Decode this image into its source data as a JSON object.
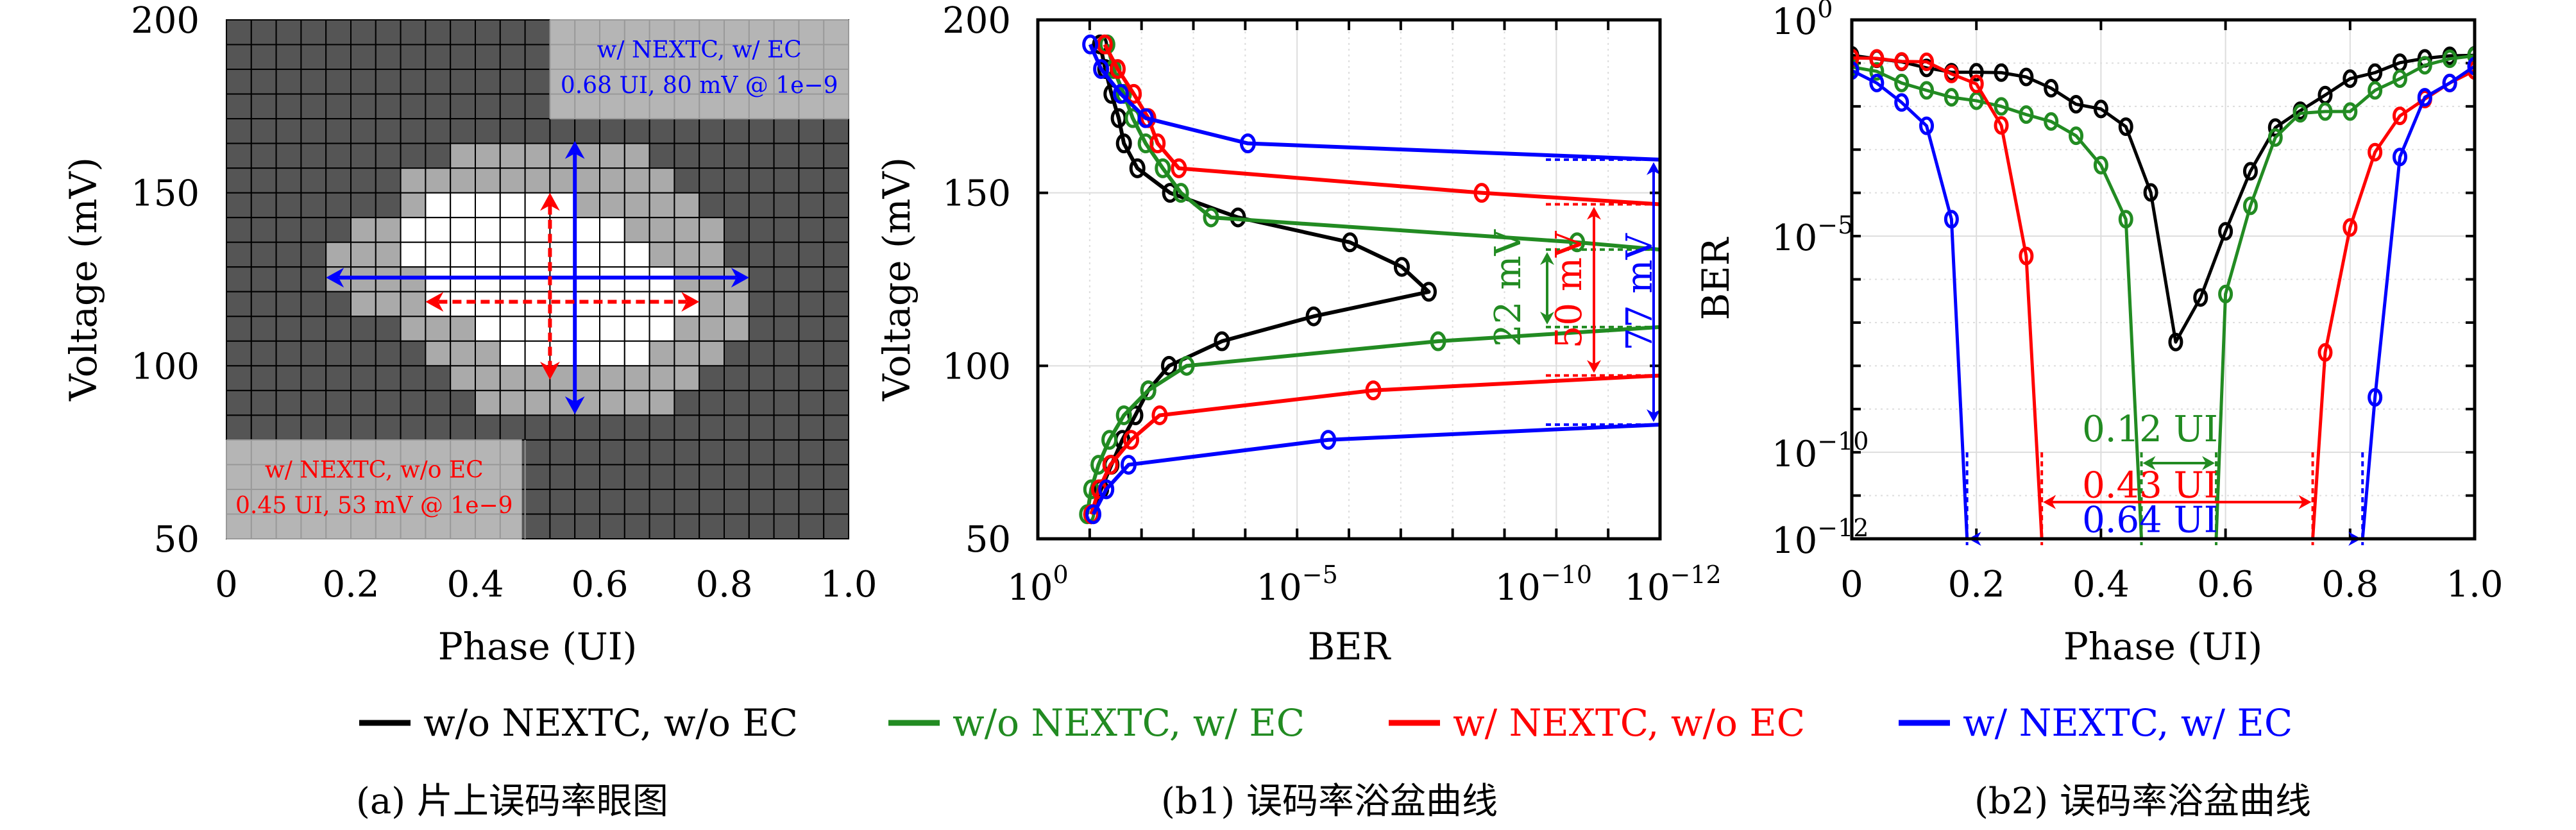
{
  "colors": {
    "black": "#000000",
    "green": "#228B22",
    "red": "#FF0000",
    "blue": "#0000FF",
    "eye_dark": "#555555",
    "eye_mid": "#AAAAAA",
    "eye_open": "#FFFFFF",
    "label_box": "#BBBBBB"
  },
  "legend": [
    {
      "key": "k",
      "label": "w/o NEXTC, w/o EC",
      "color": "#000000"
    },
    {
      "key": "g",
      "label": "w/o NEXTC, w/ EC",
      "color": "#228B22"
    },
    {
      "key": "r",
      "label": "w/ NEXTC, w/o EC",
      "color": "#FF0000"
    },
    {
      "key": "b",
      "label": "w/ NEXTC, w/ EC",
      "color": "#0000FF"
    }
  ],
  "captions": {
    "a": "(a) 片上误码率眼图",
    "b1": "(b1) 误码率浴盆曲线",
    "b2": "(b2) 误码率浴盆曲线"
  },
  "chart_data": [
    {
      "id": "a",
      "type": "heatmap",
      "title": "片上误码率眼图",
      "xlabel": "Phase (UI)",
      "ylabel": "Voltage (mV)",
      "xlim": [
        0,
        1.0
      ],
      "ylim": [
        50,
        200
      ],
      "xticks": [
        "0",
        "0.2",
        "0.4",
        "0.6",
        "0.8",
        "1.0"
      ],
      "xtick_values": [
        0,
        0.2,
        0.4,
        0.6,
        0.8,
        1.0
      ],
      "yticks": [
        "50",
        "100",
        "150",
        "200"
      ],
      "ytick_values": [
        50,
        100,
        150,
        200
      ],
      "grid_cols": 25,
      "grid_rows": 21,
      "cell_legend": {
        "0": "BER above 1e-9 for both (dark)",
        "1": "open only with NEXTC + EC (mid grey)",
        "2": "open for both (white)"
      },
      "rows_top_to_bottom": [
        "0000000000000000000000000",
        "0000000000000000000000000",
        "0000000000000000000000000",
        "0000000000000000000000000",
        "0000000000000000000000000",
        "0000000001111111100000000",
        "0000000111111111110000000",
        "0000000122222211111000000",
        "0000011222222222111100000",
        "0000111222222222211100000",
        "0000111122222222221110000",
        "0000011122222222222110000",
        "0000000111222222221110000",
        "0000000011122222211100000",
        "0000000001111111111000000",
        "0000000000111111110000000",
        "0000000000000000000000000",
        "0000000000000000000000000",
        "0000000000000000000000000",
        "0000000000000000000000000",
        "0000000000000000000000000"
      ],
      "label_boxes": [
        {
          "position": "top-right",
          "color": "#0000FF",
          "lines": [
            "w/ NEXTC, w/ EC",
            "0.68 UI, 80 mV @ 1e−9"
          ]
        },
        {
          "position": "bottom-left",
          "color": "#FF0000",
          "lines": [
            "w/ NEXTC, w/o EC",
            "0.45 UI, 53 mV @ 1e−9"
          ]
        }
      ],
      "arrows": [
        {
          "series": "b",
          "style": "solid",
          "horizontal": {
            "y": 125.5,
            "x0": 0.16,
            "x1": 0.84
          },
          "vertical": {
            "x": 0.56,
            "y0": 86,
            "y1": 165
          }
        },
        {
          "series": "r",
          "style": "dashed",
          "horizontal": {
            "y": 118.5,
            "x0": 0.32,
            "x1": 0.76
          },
          "vertical": {
            "x": 0.52,
            "y0": 96,
            "y1": 150
          }
        }
      ]
    },
    {
      "id": "b1",
      "type": "line",
      "title": "误码率浴盆曲线",
      "xlabel": "BER",
      "ylabel": "Voltage (mV)",
      "xscale": "log",
      "x_reversed": true,
      "xlim_exp": [
        0,
        -12
      ],
      "ylim": [
        50,
        200
      ],
      "xticks": [
        {
          "exp": 0,
          "label": "10",
          "sup": "0"
        },
        {
          "exp": -5,
          "label": "10",
          "sup": "−5"
        },
        {
          "exp": -10,
          "label": "10",
          "sup": "−10"
        },
        {
          "exp": -12,
          "label": "10",
          "sup": "−12"
        }
      ],
      "yticks": [
        "50",
        "100",
        "150",
        "200"
      ],
      "ytick_values": [
        50,
        100,
        150,
        200
      ],
      "grid": true,
      "series": [
        {
          "key": "k",
          "name": "w/o NEXTC, w/o EC",
          "segments": [
            [
              [
                -1.2,
                192.9
              ],
              [
                -1.3,
                185.8
              ],
              [
                -1.42,
                178.6
              ],
              [
                -1.56,
                171.6
              ],
              [
                -1.66,
                164.3
              ],
              [
                -1.92,
                157.1
              ],
              [
                -2.55,
                150.0
              ],
              [
                -3.86,
                142.9
              ],
              [
                -6.02,
                135.7
              ],
              [
                -7.02,
                128.6
              ],
              [
                -7.54,
                121.4
              ],
              [
                -5.32,
                114.3
              ],
              [
                -3.55,
                107.1
              ],
              [
                -2.53,
                100.0
              ],
              [
                -2.13,
                92.9
              ],
              [
                -1.88,
                85.7
              ],
              [
                -1.63,
                78.6
              ],
              [
                -1.42,
                71.4
              ],
              [
                -1.22,
                64.3
              ],
              [
                -1.03,
                57.1
              ]
            ]
          ]
        },
        {
          "key": "g",
          "name": "w/o NEXTC, w/ EC",
          "segments": [
            [
              [
                -1.34,
                192.9
              ],
              [
                -1.46,
                185.8
              ],
              [
                -1.66,
                178.6
              ],
              [
                -1.83,
                171.6
              ],
              [
                -2.08,
                164.3
              ],
              [
                -2.41,
                157.1
              ],
              [
                -2.76,
                150.0
              ],
              [
                -3.34,
                142.9
              ],
              [
                -10.4,
                135.7
              ],
              [
                -12,
                133.6
              ]
            ],
            [
              [
                -12,
                111.2
              ],
              [
                -7.72,
                107.1
              ],
              [
                -2.87,
                100.0
              ],
              [
                -2.13,
                92.9
              ],
              [
                -1.66,
                85.7
              ],
              [
                -1.38,
                78.6
              ],
              [
                -1.17,
                71.4
              ],
              [
                -1.03,
                64.3
              ],
              [
                -0.95,
                57.1
              ]
            ]
          ]
        },
        {
          "key": "r",
          "name": "w/ NEXTC, w/o EC",
          "segments": [
            [
              [
                -1.29,
                192.9
              ],
              [
                -1.54,
                185.8
              ],
              [
                -1.85,
                178.6
              ],
              [
                -2.13,
                171.6
              ],
              [
                -2.31,
                164.3
              ],
              [
                -2.72,
                157.1
              ],
              [
                -8.56,
                150.0
              ],
              [
                -12,
                146.7
              ]
            ],
            [
              [
                -12,
                97.2
              ],
              [
                -6.47,
                92.9
              ],
              [
                -2.35,
                85.7
              ],
              [
                -1.8,
                78.6
              ],
              [
                -1.4,
                71.4
              ],
              [
                -1.18,
                64.3
              ],
              [
                -1.03,
                57.1
              ]
            ]
          ]
        },
        {
          "key": "b",
          "name": "w/ NEXTC, w/ EC",
          "segments": [
            [
              [
                -1.01,
                192.9
              ],
              [
                -1.22,
                185.8
              ],
              [
                -1.6,
                178.6
              ],
              [
                -2.08,
                171.6
              ],
              [
                -4.05,
                164.3
              ],
              [
                -12,
                159.6
              ]
            ],
            [
              [
                -12,
                83.0
              ],
              [
                -5.6,
                78.6
              ],
              [
                -1.75,
                71.4
              ],
              [
                -1.32,
                64.3
              ],
              [
                -1.07,
                57.1
              ]
            ]
          ]
        }
      ],
      "annotations": [
        {
          "key": "g",
          "text": "22 mV",
          "y0": 111.2,
          "y1": 133.6
        },
        {
          "key": "r",
          "text": "50 mV",
          "y0": 97.2,
          "y1": 146.7
        },
        {
          "key": "b",
          "text": "77 mV",
          "y0": 83.0,
          "y1": 159.6
        }
      ]
    },
    {
      "id": "b2",
      "type": "line",
      "title": "误码率浴盆曲线",
      "xlabel": "Phase (UI)",
      "ylabel": "BER",
      "yscale": "log",
      "xlim": [
        0,
        1.0
      ],
      "ylim_exp": [
        -12,
        0
      ],
      "xticks": [
        "0",
        "0.2",
        "0.4",
        "0.6",
        "0.8",
        "1.0"
      ],
      "xtick_values": [
        0,
        0.2,
        0.4,
        0.6,
        0.8,
        1.0
      ],
      "yticks": [
        {
          "exp": 0,
          "label": "10",
          "sup": "0"
        },
        {
          "exp": -5,
          "label": "10",
          "sup": "−5"
        },
        {
          "exp": -10,
          "label": "10",
          "sup": "−10"
        },
        {
          "exp": -12,
          "label": "10",
          "sup": "−12"
        }
      ],
      "grid": true,
      "series": [
        {
          "key": "k",
          "name": "w/o NEXTC, w/o EC",
          "segments": [
            [
              [
                0,
                -0.82
              ],
              [
                0.04,
                -0.9
              ],
              [
                0.08,
                -0.97
              ],
              [
                0.12,
                -1.11
              ],
              [
                0.16,
                -1.21
              ],
              [
                0.2,
                -1.21
              ],
              [
                0.24,
                -1.22
              ],
              [
                0.28,
                -1.32
              ],
              [
                0.32,
                -1.58
              ],
              [
                0.36,
                -1.95
              ],
              [
                0.4,
                -2.06
              ],
              [
                0.44,
                -2.47
              ],
              [
                0.48,
                -3.99
              ],
              [
                0.52,
                -7.45
              ],
              [
                0.56,
                -6.42
              ],
              [
                0.6,
                -4.89
              ],
              [
                0.64,
                -3.5
              ],
              [
                0.68,
                -2.49
              ],
              [
                0.72,
                -2.1
              ],
              [
                0.76,
                -1.74
              ],
              [
                0.8,
                -1.36
              ],
              [
                0.84,
                -1.22
              ],
              [
                0.88,
                -0.99
              ],
              [
                0.92,
                -0.89
              ],
              [
                0.96,
                -0.83
              ],
              [
                1.0,
                -0.82
              ]
            ]
          ]
        },
        {
          "key": "g",
          "name": "w/o NEXTC, w/ EC",
          "segments": [
            [
              [
                0,
                -1.09
              ],
              [
                0.04,
                -1.19
              ],
              [
                0.08,
                -1.46
              ],
              [
                0.12,
                -1.63
              ],
              [
                0.16,
                -1.79
              ],
              [
                0.2,
                -1.87
              ],
              [
                0.24,
                -2.0
              ],
              [
                0.28,
                -2.19
              ],
              [
                0.32,
                -2.35
              ],
              [
                0.36,
                -2.68
              ],
              [
                0.4,
                -3.36
              ],
              [
                0.44,
                -4.61
              ],
              [
                0.465,
                -12
              ]
            ],
            [
              [
                0.585,
                -12
              ],
              [
                0.6,
                -6.34
              ],
              [
                0.64,
                -4.3
              ],
              [
                0.68,
                -2.72
              ],
              [
                0.72,
                -2.16
              ],
              [
                0.76,
                -2.12
              ],
              [
                0.8,
                -2.12
              ],
              [
                0.84,
                -1.63
              ],
              [
                0.88,
                -1.36
              ],
              [
                0.92,
                -1.05
              ],
              [
                0.96,
                -0.9
              ],
              [
                1.0,
                -0.83
              ]
            ]
          ]
        },
        {
          "key": "r",
          "name": "w/ NEXTC, w/o EC",
          "segments": [
            [
              [
                0,
                -0.88
              ],
              [
                0.04,
                -0.89
              ],
              [
                0.08,
                -0.96
              ],
              [
                0.12,
                -0.97
              ],
              [
                0.16,
                -1.25
              ],
              [
                0.2,
                -1.48
              ],
              [
                0.24,
                -2.44
              ],
              [
                0.28,
                -5.46
              ],
              [
                0.305,
                -12
              ]
            ],
            [
              [
                0.74,
                -12
              ],
              [
                0.76,
                -7.69
              ],
              [
                0.8,
                -4.8
              ],
              [
                0.84,
                -3.06
              ],
              [
                0.88,
                -2.22
              ],
              [
                0.92,
                -1.83
              ],
              [
                0.96,
                -1.46
              ],
              [
                1.0,
                -1.17
              ]
            ]
          ]
        },
        {
          "key": "b",
          "name": "w/ NEXTC, w/ EC",
          "segments": [
            [
              [
                0,
                -1.17
              ],
              [
                0.04,
                -1.46
              ],
              [
                0.08,
                -1.91
              ],
              [
                0.12,
                -2.45
              ],
              [
                0.16,
                -4.61
              ],
              [
                0.185,
                -12
              ]
            ],
            [
              [
                0.82,
                -12
              ],
              [
                0.84,
                -8.73
              ],
              [
                0.88,
                -3.17
              ],
              [
                0.92,
                -1.79
              ],
              [
                0.96,
                -1.46
              ],
              [
                1.0,
                -1.07
              ]
            ]
          ]
        }
      ],
      "annotations": [
        {
          "key": "g",
          "text": "0.12 UI",
          "x0": 0.465,
          "x1": 0.585,
          "y_exp": -10.25
        },
        {
          "key": "r",
          "text": "0.43 UI",
          "x0": 0.305,
          "x1": 0.74,
          "y_exp": -11.15
        },
        {
          "key": "b",
          "text": "0.64 UI",
          "x0": 0.185,
          "x1": 0.82,
          "y_exp": -12
        }
      ]
    }
  ]
}
